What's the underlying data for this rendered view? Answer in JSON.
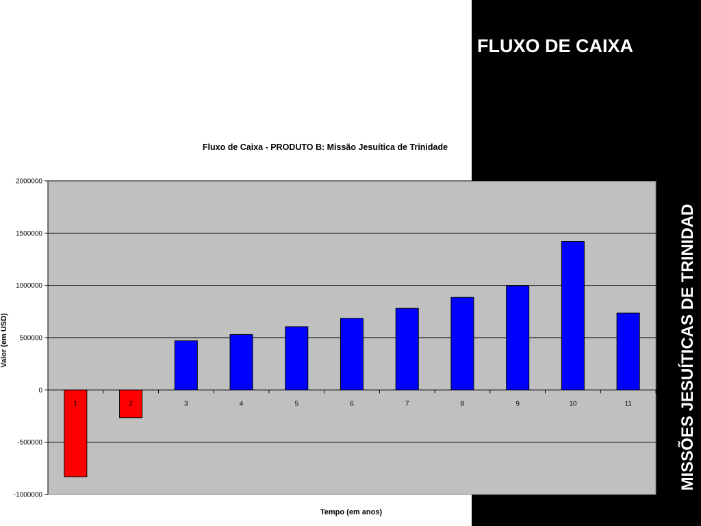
{
  "slide": {
    "title": "FLUXO DE CAIXA",
    "vertical_title": "MISSÕES JESUÍTICAS DE TRINIDAD",
    "panel_color": "#000000",
    "title_color": "#ffffff"
  },
  "chart_data": {
    "type": "bar",
    "title": "Fluxo de Caixa - PRODUTO B: Missão Jesuítica de Trinidade",
    "xlabel": "Tempo (em anos)",
    "ylabel": "Valor (em USD)",
    "categories": [
      "1",
      "2",
      "3",
      "4",
      "5",
      "6",
      "7",
      "8",
      "9",
      "10",
      "11"
    ],
    "values": [
      -830000,
      -265000,
      470000,
      530000,
      605000,
      685000,
      780000,
      885000,
      995000,
      1420000,
      735000
    ],
    "ylim": [
      -1000000,
      2000000
    ],
    "yticks": [
      "2000000",
      "1500000",
      "1000000",
      "500000",
      "0",
      "-500000",
      "-1000000"
    ],
    "grid": true,
    "plot_background": "#c0c0c0",
    "positive_color": "#0000ff",
    "negative_color": "#ff0000"
  }
}
